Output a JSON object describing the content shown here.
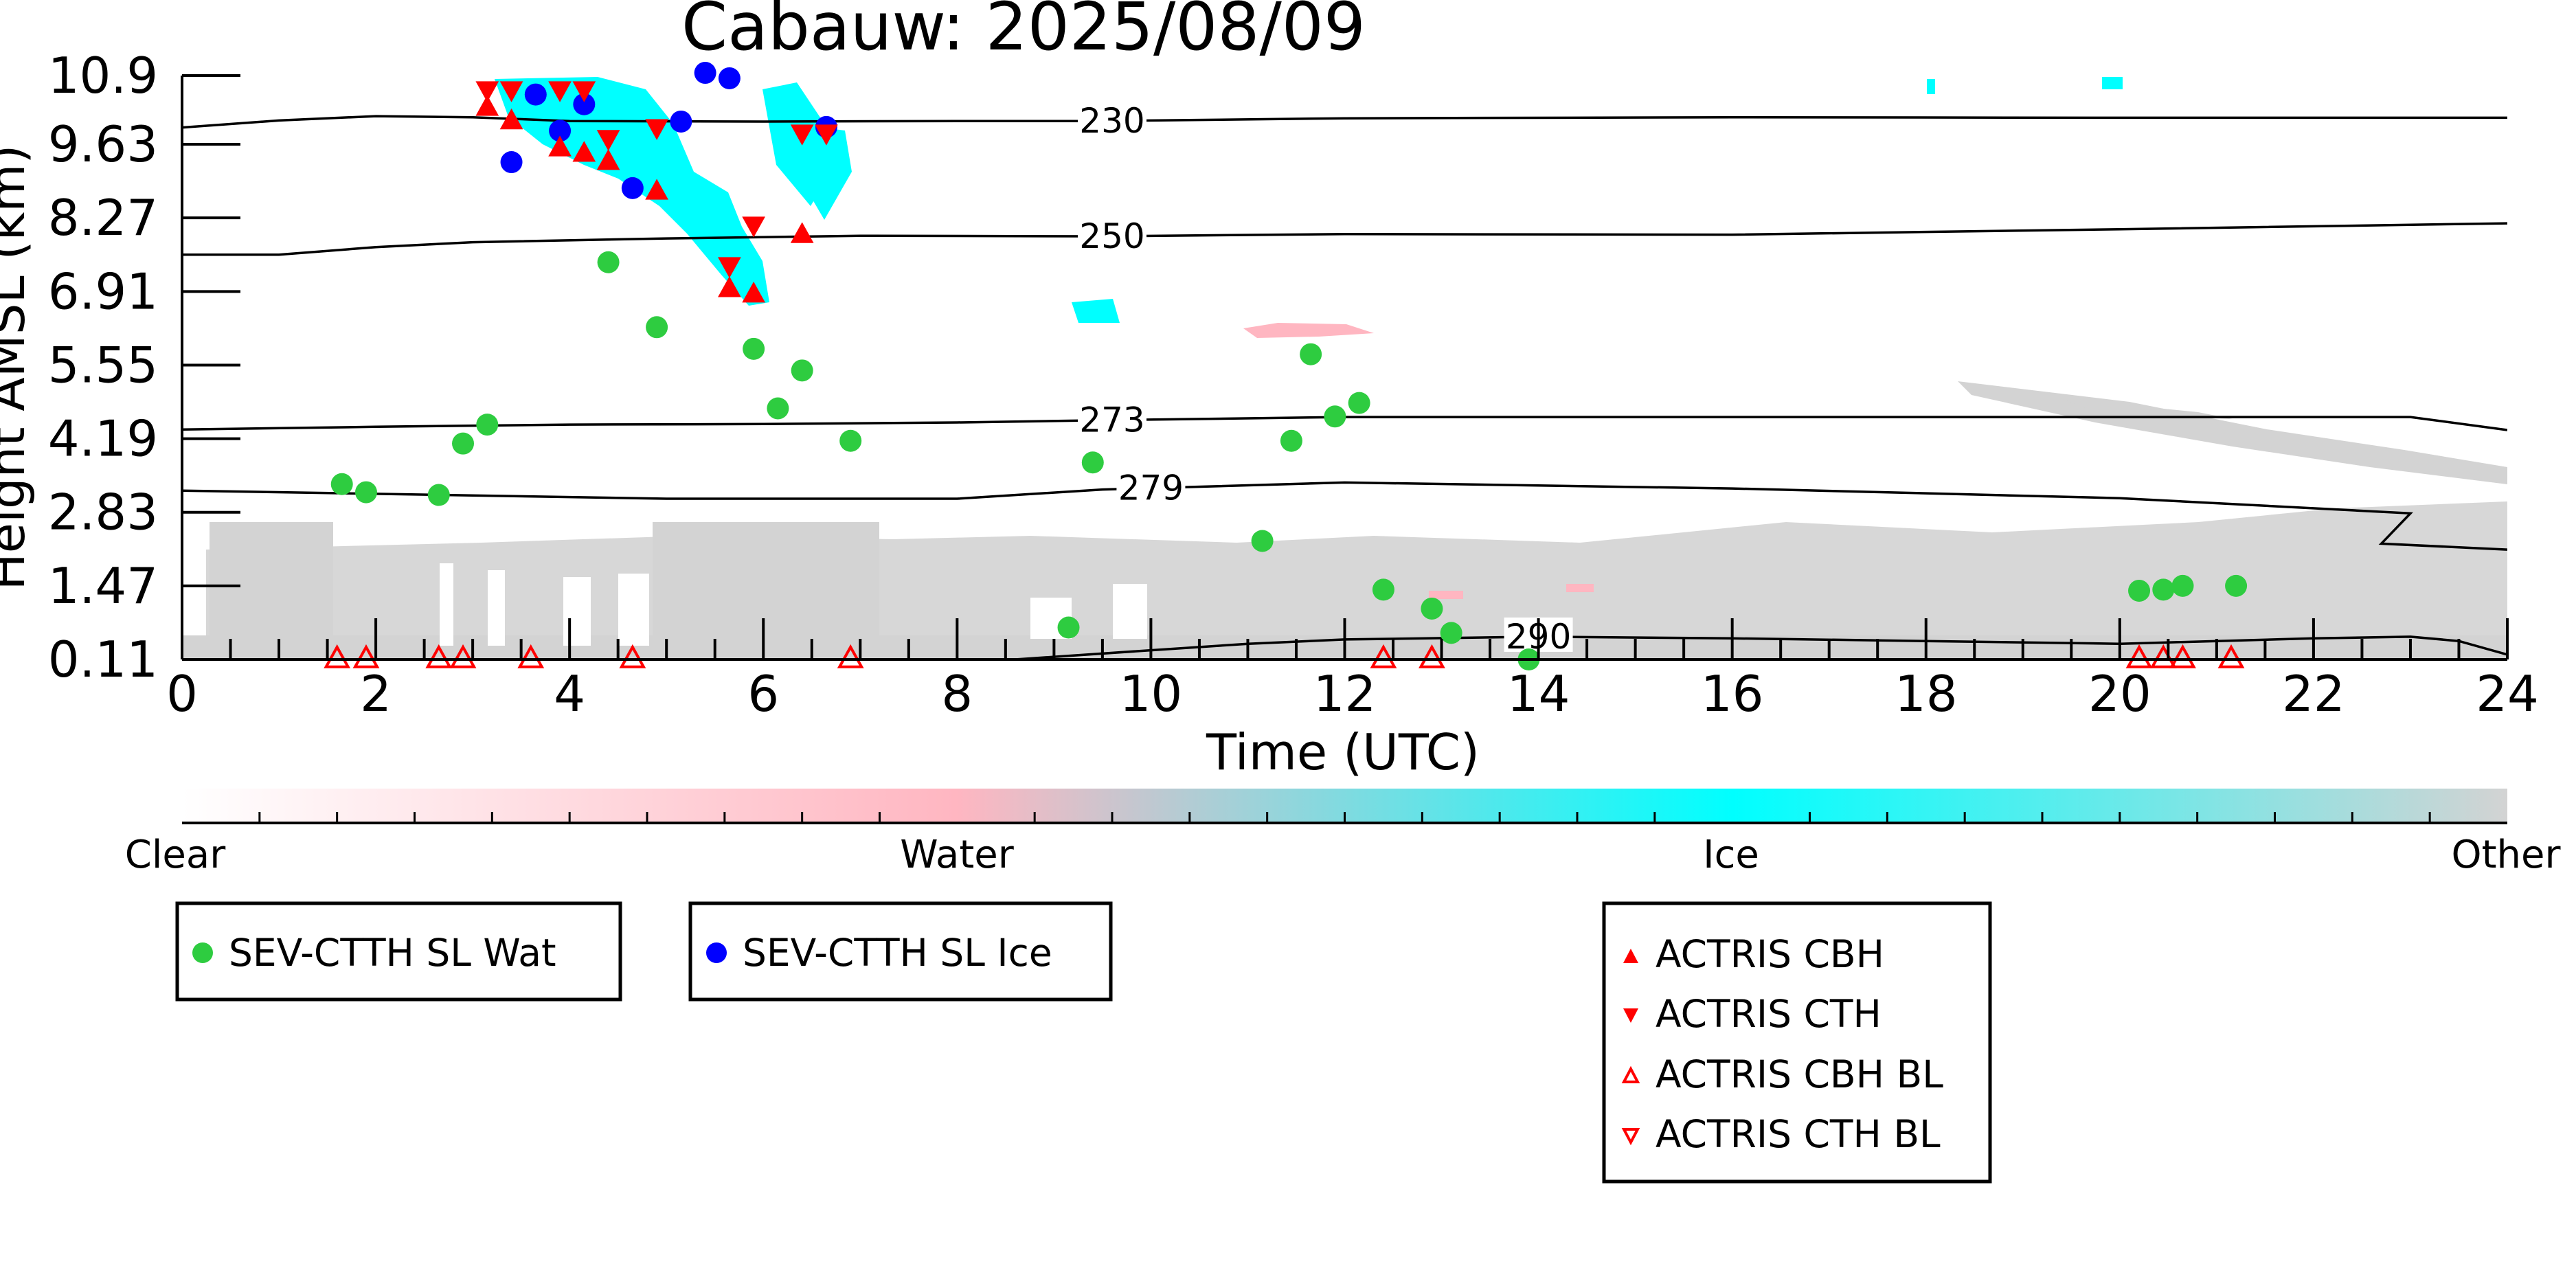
{
  "chart_data": {
    "type": "scatter",
    "title": "Cabauw: 2025/08/09",
    "xlabel": "Time (UTC)",
    "ylabel": "Height AMSL (km)",
    "xlim": [
      0,
      24
    ],
    "ylim": [
      0.11,
      10.9
    ],
    "x_ticks": [
      0,
      2,
      4,
      6,
      8,
      10,
      12,
      14,
      16,
      18,
      20,
      22,
      24
    ],
    "y_ticks": [
      0.11,
      1.47,
      2.83,
      4.19,
      5.55,
      6.91,
      8.27,
      9.63,
      10.9
    ],
    "y_tick_labels": [
      "0.11",
      "1.47",
      "2.83",
      "4.19",
      "5.55",
      "6.91",
      "8.27",
      "9.63",
      "10.9"
    ],
    "colorbar": {
      "labels": [
        "Clear",
        "Water",
        "Ice",
        "Other"
      ],
      "colors": [
        "#ffffff",
        "#ffb6c1",
        "#00ffff",
        "#d3d3d3"
      ]
    },
    "contours": [
      {
        "label": "230",
        "label_x": 9.6,
        "points": [
          [
            0,
            9.94
          ],
          [
            1,
            10.07
          ],
          [
            2,
            10.15
          ],
          [
            3,
            10.13
          ],
          [
            4,
            10.06
          ],
          [
            6,
            10.05
          ],
          [
            8,
            10.06
          ],
          [
            9.5,
            10.06
          ],
          [
            12,
            10.11
          ],
          [
            16,
            10.13
          ],
          [
            20,
            10.12
          ],
          [
            24,
            10.12
          ]
        ]
      },
      {
        "label": "250",
        "label_x": 9.6,
        "points": [
          [
            0,
            7.59
          ],
          [
            1,
            7.59
          ],
          [
            2,
            7.73
          ],
          [
            3,
            7.82
          ],
          [
            5,
            7.89
          ],
          [
            7,
            7.94
          ],
          [
            9.5,
            7.93
          ],
          [
            12,
            7.97
          ],
          [
            16,
            7.96
          ],
          [
            20,
            8.06
          ],
          [
            24,
            8.17
          ]
        ]
      },
      {
        "label": "273",
        "label_x": 9.6,
        "points": [
          [
            0,
            4.36
          ],
          [
            2,
            4.41
          ],
          [
            4,
            4.45
          ],
          [
            6,
            4.46
          ],
          [
            8,
            4.49
          ],
          [
            9.5,
            4.53
          ],
          [
            12,
            4.59
          ],
          [
            16,
            4.59
          ],
          [
            20,
            4.59
          ],
          [
            23,
            4.59
          ],
          [
            24,
            4.35
          ]
        ]
      },
      {
        "label": "279",
        "label_x": 10.0,
        "points": [
          [
            0,
            3.23
          ],
          [
            2,
            3.17
          ],
          [
            5,
            3.08
          ],
          [
            8,
            3.08
          ],
          [
            9.5,
            3.25
          ],
          [
            12,
            3.38
          ],
          [
            16,
            3.27
          ],
          [
            20,
            3.09
          ],
          [
            23,
            2.81
          ],
          [
            22.7,
            2.25
          ],
          [
            24,
            2.14
          ]
        ]
      },
      {
        "label": "290",
        "label_x": 14.0,
        "points": [
          [
            8.6,
            0.11
          ],
          [
            10,
            0.28
          ],
          [
            11,
            0.4
          ],
          [
            12,
            0.48
          ],
          [
            14,
            0.53
          ],
          [
            16,
            0.5
          ],
          [
            18,
            0.45
          ],
          [
            20,
            0.4
          ],
          [
            22,
            0.5
          ],
          [
            23,
            0.53
          ],
          [
            23.5,
            0.45
          ],
          [
            24,
            0.2
          ]
        ]
      }
    ],
    "series": [
      {
        "name": "SEV-CTTH SL Wat",
        "marker": "circle",
        "color": "#2ecc40",
        "points": [
          [
            1.65,
            3.35
          ],
          [
            1.9,
            3.2
          ],
          [
            2.65,
            3.15
          ],
          [
            2.9,
            4.1
          ],
          [
            3.15,
            4.45
          ],
          [
            4.4,
            7.45
          ],
          [
            4.9,
            6.25
          ],
          [
            5.9,
            5.85
          ],
          [
            6.15,
            4.75
          ],
          [
            6.4,
            5.45
          ],
          [
            6.9,
            4.15
          ],
          [
            9.15,
            0.7
          ],
          [
            9.4,
            3.75
          ],
          [
            11.15,
            2.3
          ],
          [
            11.45,
            4.15
          ],
          [
            11.65,
            5.75
          ],
          [
            11.9,
            4.6
          ],
          [
            12.15,
            4.85
          ],
          [
            12.4,
            1.4
          ],
          [
            12.9,
            1.05
          ],
          [
            13.1,
            0.6
          ],
          [
            13.9,
            0.11
          ],
          [
            20.2,
            1.38
          ],
          [
            20.45,
            1.4
          ],
          [
            20.65,
            1.47
          ],
          [
            21.2,
            1.47
          ]
        ]
      },
      {
        "name": "SEV-CTTH SL Ice",
        "marker": "circle",
        "color": "#0000ff",
        "points": [
          [
            3.4,
            9.3
          ],
          [
            3.65,
            10.55
          ],
          [
            3.9,
            9.88
          ],
          [
            4.15,
            10.37
          ],
          [
            4.65,
            8.82
          ],
          [
            5.15,
            10.05
          ],
          [
            5.4,
            10.95
          ],
          [
            5.65,
            10.85
          ],
          [
            6.65,
            9.95
          ]
        ]
      },
      {
        "name": "ACTRIS CBH",
        "marker": "triangle-up",
        "color": "#ff0000",
        "filled": true,
        "points": [
          [
            3.15,
            10.3
          ],
          [
            3.4,
            10.05
          ],
          [
            3.9,
            9.55
          ],
          [
            4.15,
            9.45
          ],
          [
            4.4,
            9.3
          ],
          [
            4.9,
            8.75
          ],
          [
            5.65,
            6.95
          ],
          [
            5.9,
            6.85
          ],
          [
            6.4,
            7.95
          ]
        ]
      },
      {
        "name": "ACTRIS CTH",
        "marker": "triangle-down",
        "color": "#ff0000",
        "filled": true,
        "points": [
          [
            3.15,
            10.65
          ],
          [
            3.4,
            10.65
          ],
          [
            3.9,
            10.65
          ],
          [
            4.15,
            10.65
          ],
          [
            4.4,
            9.75
          ],
          [
            4.9,
            9.95
          ],
          [
            5.65,
            7.4
          ],
          [
            5.9,
            8.15
          ],
          [
            6.4,
            9.85
          ],
          [
            6.65,
            9.85
          ]
        ]
      },
      {
        "name": "ACTRIS CBH BL",
        "marker": "triangle-up",
        "color": "#ff0000",
        "filled": false,
        "points": [
          [
            1.6,
            0.11
          ],
          [
            1.9,
            0.11
          ],
          [
            2.65,
            0.11
          ],
          [
            2.9,
            0.11
          ],
          [
            3.6,
            0.11
          ],
          [
            4.65,
            0.11
          ],
          [
            6.9,
            0.11
          ],
          [
            12.4,
            0.11
          ],
          [
            12.9,
            0.11
          ],
          [
            20.2,
            0.11
          ],
          [
            20.45,
            0.11
          ],
          [
            20.65,
            0.11
          ],
          [
            21.15,
            0.11
          ]
        ]
      },
      {
        "name": "ACTRIS CTH BL",
        "marker": "triangle-down",
        "color": "#ff0000",
        "filled": false,
        "points": []
      }
    ],
    "legend_groups": [
      [
        "SEV-CTTH SL Wat"
      ],
      [
        "SEV-CTTH SL Ice"
      ],
      [
        "ACTRIS CBH",
        "ACTRIS CTH",
        "ACTRIS CBH BL",
        "ACTRIS CTH BL"
      ]
    ]
  }
}
